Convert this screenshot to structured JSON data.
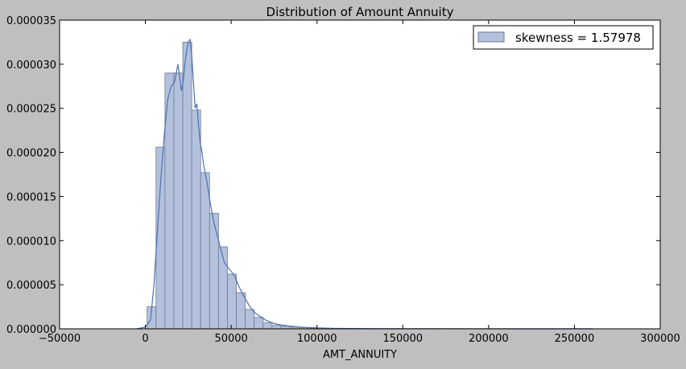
{
  "chart_data": {
    "type": "bar",
    "title": "Distribution of Amount Annuity",
    "xlabel": "AMT_ANNUITY",
    "ylabel": "",
    "xlim": [
      -50000,
      300000
    ],
    "ylim": [
      0,
      3.5e-05
    ],
    "xticks": [
      -50000,
      0,
      50000,
      100000,
      150000,
      200000,
      250000,
      300000
    ],
    "xtick_labels": [
      "−50000",
      "0",
      "50000",
      "100000",
      "150000",
      "200000",
      "250000",
      "300000"
    ],
    "yticks": [
      0,
      5e-06,
      1e-05,
      1.5e-05,
      2e-05,
      2.5e-05,
      3e-05,
      3.5e-05
    ],
    "ytick_labels": [
      "0.000000",
      "0.000005",
      "0.000010",
      "0.000015",
      "0.000020",
      "0.000025",
      "0.000030",
      "0.000035"
    ],
    "grid": false,
    "legend": {
      "placement": "top-right",
      "entries": [
        "skewness = 1.57978"
      ]
    },
    "colors": {
      "bar_fill": "#b3c1dc",
      "bar_edge": "#6d7b96",
      "kde_line": "#4c72b0",
      "background": "#bfbfbf",
      "plot_area": "#ffffff"
    },
    "histogram": {
      "bin_edges": [
        1000,
        6200,
        11400,
        16600,
        21800,
        27000,
        32200,
        37400,
        42600,
        47800,
        53000,
        58200,
        63400,
        68600,
        73800,
        79000,
        84200,
        89400,
        94600,
        99800,
        105000,
        110200,
        260000
      ],
      "densities": [
        2.5e-06,
        2.06e-05,
        2.9e-05,
        2.9e-05,
        3.25e-05,
        2.48e-05,
        1.77e-05,
        1.31e-05,
        9.3e-06,
        6.2e-06,
        4.1e-06,
        2.2e-06,
        1.3e-06,
        7e-07,
        4e-07,
        3e-07,
        2e-07,
        1.5e-07,
        1e-07,
        8e-08,
        5e-08,
        2e-08
      ]
    },
    "kde": {
      "x": [
        -5000,
        0,
        3000,
        5000,
        7000,
        9000,
        11000,
        13000,
        15000,
        17000,
        19000,
        20000,
        21000,
        22000,
        23000,
        24000,
        25000,
        26000,
        27000,
        28000,
        29000,
        30000,
        31000,
        32000,
        33000,
        34000,
        36000,
        38000,
        40000,
        42000,
        44000,
        46000,
        48000,
        50000,
        52000,
        54000,
        56000,
        58000,
        60000,
        62000,
        64000,
        66000,
        70000,
        75000,
        80000,
        90000,
        100000,
        110000,
        130000,
        160000,
        200000,
        230000,
        261000
      ],
      "y": [
        0.0,
        2e-07,
        1e-06,
        5e-06,
        1.1e-05,
        1.7e-05,
        2.2e-05,
        2.6e-05,
        2.75e-05,
        2.8e-05,
        3e-05,
        2.85e-05,
        2.7e-05,
        2.8e-05,
        3e-05,
        3.15e-05,
        3.25e-05,
        3.28e-05,
        3.1e-05,
        2.8e-05,
        2.5e-05,
        2.55e-05,
        2.3e-05,
        2.1e-05,
        2e-05,
        1.85e-05,
        1.65e-05,
        1.4e-05,
        1.2e-05,
        1.05e-05,
        9e-06,
        7.5e-06,
        7e-06,
        6.5e-06,
        6e-06,
        5e-06,
        4.2e-06,
        3.5e-06,
        2.8e-06,
        2.2e-06,
        1.8e-06,
        1.5e-06,
        1e-06,
        6e-07,
        4e-07,
        2e-07,
        1e-07,
        5e-08,
        2e-08,
        1e-08,
        5e-09,
        2e-09,
        0.0
      ]
    }
  }
}
